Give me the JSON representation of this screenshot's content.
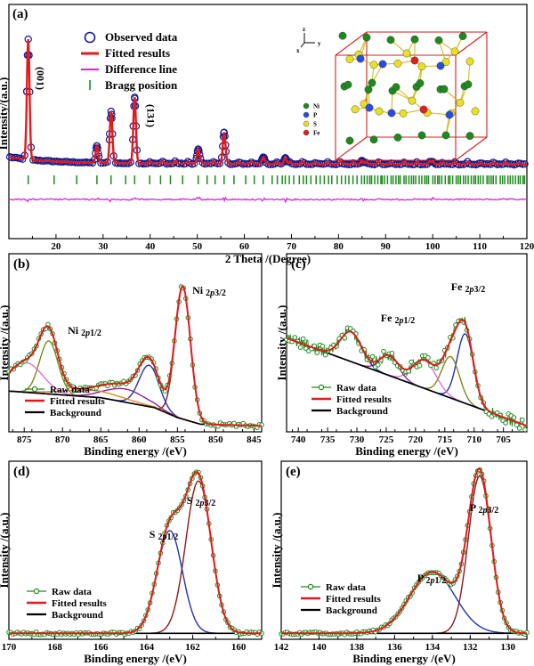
{
  "chart_data": [
    {
      "type": "line",
      "panel": "(a)",
      "xlabel": "2 Theta /(Degree)",
      "ylabel": "Intensity/(a.u.)",
      "xlim": [
        10,
        120
      ],
      "xticks": [
        20,
        30,
        40,
        50,
        60,
        70,
        80,
        90,
        100,
        110,
        120
      ],
      "y_ticklabels_shown": false,
      "legend": {
        "placement": "top-left",
        "entries": [
          "Observed data",
          "Fitted results",
          "Difference line",
          "Bragg position"
        ]
      },
      "annotations": [
        {
          "text": "(001)",
          "x": 14.1
        },
        {
          "text": "(131)",
          "x": 36.7
        }
      ],
      "peaks": [
        {
          "x": 14.1,
          "height": 1.0
        },
        {
          "x": 28.7,
          "height": 0.14
        },
        {
          "x": 31.7,
          "height": 0.43
        },
        {
          "x": 36.7,
          "height": 0.55
        },
        {
          "x": 50.2,
          "height": 0.12
        },
        {
          "x": 55.7,
          "height": 0.26
        },
        {
          "x": 64.0,
          "height": 0.05
        },
        {
          "x": 68.7,
          "height": 0.05
        },
        {
          "x": 85.0,
          "height": 0.03
        },
        {
          "x": 100.0,
          "height": 0.02
        }
      ],
      "series": [
        {
          "name": "Observed data",
          "color": "#1a1a8c",
          "marker": "open-circle"
        },
        {
          "name": "Fitted results",
          "color": "#e01b1b"
        },
        {
          "name": "Difference line",
          "color": "#e020e0"
        },
        {
          "name": "Bragg position",
          "color": "#1e8a1e",
          "marker": "vertical-bar"
        }
      ],
      "crystal_structure": {
        "axes": [
          "z",
          "y",
          "x"
        ],
        "legend": [
          {
            "label": "Ni",
            "color": "#1e8a1e"
          },
          {
            "label": "P",
            "color": "#2a4de0"
          },
          {
            "label": "S",
            "color": "#e8e020"
          },
          {
            "label": "Fe",
            "color": "#e02020"
          }
        ]
      }
    },
    {
      "type": "line",
      "panel": "(b)",
      "xlabel": "Binding energy /(eV)",
      "ylabel": "Intensity /(a.u.)",
      "xlim": [
        877,
        844
      ],
      "xticks": [
        875,
        870,
        865,
        860,
        855,
        850,
        845
      ],
      "reversed_x": true,
      "legend": {
        "placement": "bottom-left",
        "entries": [
          "Raw data",
          "Fitted results",
          "Background"
        ]
      },
      "annotations": [
        {
          "text": "Ni 2p1/2",
          "x": 872.3
        },
        {
          "text": "Ni 2p3/2",
          "x": 854.3
        }
      ],
      "background": [
        [
          877,
          0.23
        ],
        [
          865,
          0.19
        ],
        [
          858,
          0.13
        ],
        [
          855,
          0.07
        ],
        [
          852,
          0.03
        ],
        [
          844,
          0.02
        ]
      ],
      "components": [
        {
          "center": 854.3,
          "height": 0.8,
          "width": 1.0,
          "color": "#8b1a1a"
        },
        {
          "center": 858.7,
          "height": 0.25,
          "width": 1.3,
          "color": "#2233aa"
        },
        {
          "center": 861.8,
          "height": 0.08,
          "width": 2.6,
          "color": "#8a2090"
        },
        {
          "center": 871.8,
          "height": 0.32,
          "width": 1.2,
          "color": "#7a8a1a"
        },
        {
          "center": 874.8,
          "height": 0.18,
          "width": 2.2,
          "color": "#e070d0"
        },
        {
          "center": 866.0,
          "height": 0.04,
          "width": 4.0,
          "color": "#e08a20"
        }
      ],
      "series": [
        {
          "name": "Raw data",
          "color": "#1e8a1e",
          "marker": "open-circle"
        },
        {
          "name": "Fitted results",
          "color": "#e01b1b"
        },
        {
          "name": "Background",
          "color": "#000000"
        }
      ]
    },
    {
      "type": "line",
      "panel": "(c)",
      "xlabel": "Binding energy /(eV)",
      "ylabel": "Intensity /(a.u.)",
      "xlim": [
        742,
        701
      ],
      "xticks": [
        740,
        735,
        730,
        725,
        720,
        715,
        710,
        705
      ],
      "reversed_x": true,
      "legend": {
        "placement": "bottom-left",
        "entries": [
          "Raw data",
          "Fitted results",
          "Background"
        ]
      },
      "annotations": [
        {
          "text": "Fe 2p1/2",
          "x": 724.5
        },
        {
          "text": "Fe 2p3/2",
          "x": 712.5
        }
      ],
      "background": [
        [
          742,
          0.55
        ],
        [
          701,
          0.02
        ]
      ],
      "components": [
        {
          "center": 711.5,
          "height": 0.42,
          "width": 1.4,
          "color": "#2233aa"
        },
        {
          "center": 714.0,
          "height": 0.25,
          "width": 1.5,
          "color": "#7a8a1a"
        },
        {
          "center": 718.5,
          "height": 0.17,
          "width": 2.0,
          "color": "#e070d0"
        },
        {
          "center": 724.5,
          "height": 0.12,
          "width": 1.6,
          "color": "#8a2090"
        },
        {
          "center": 731.0,
          "height": 0.18,
          "width": 1.8,
          "color": "#2233aa"
        }
      ],
      "series": [
        {
          "name": "Raw data",
          "color": "#1e8a1e",
          "marker": "open-circle"
        },
        {
          "name": "Fitted results",
          "color": "#e01b1b"
        },
        {
          "name": "Background",
          "color": "#000000"
        }
      ]
    },
    {
      "type": "line",
      "panel": "(d)",
      "xlabel": "Binding energy /(eV)",
      "ylabel": "Intensity /(a.u.)",
      "xlim": [
        170,
        159
      ],
      "xticks": [
        170,
        168,
        166,
        164,
        162,
        160
      ],
      "reversed_x": true,
      "legend": {
        "placement": "bottom-left",
        "entries": [
          "Raw data",
          "Fitted results",
          "Background"
        ]
      },
      "annotations": [
        {
          "text": "S 2p1/2",
          "x": 163.0
        },
        {
          "text": "S 2p3/2",
          "x": 161.8
        }
      ],
      "background": [
        [
          170,
          0.02
        ],
        [
          159,
          0.02
        ]
      ],
      "components": [
        {
          "center": 161.75,
          "height": 0.92,
          "width": 0.55,
          "color": "#8b1a1a"
        },
        {
          "center": 163.0,
          "height": 0.62,
          "width": 0.55,
          "color": "#2233aa"
        }
      ],
      "series": [
        {
          "name": "Raw data",
          "color": "#1e8a1e",
          "marker": "open-circle"
        },
        {
          "name": "Fitted results",
          "color": "#e01b1b"
        },
        {
          "name": "Background",
          "color": "#000000"
        }
      ]
    },
    {
      "type": "line",
      "panel": "(e)",
      "xlabel": "Binding energy /(eV)",
      "ylabel": "Intensity /(a.u.)",
      "xlim": [
        142,
        129
      ],
      "xticks": [
        142,
        140,
        138,
        136,
        134,
        132,
        130
      ],
      "reversed_x": true,
      "legend": {
        "placement": "bottom-left",
        "entries": [
          "Raw data",
          "Fitted results",
          "Background"
        ]
      },
      "annotations": [
        {
          "text": "P 2p1/2",
          "x": 134.0
        },
        {
          "text": "P 2p3/2",
          "x": 131.5
        }
      ],
      "background": [
        [
          142,
          0.02
        ],
        [
          129,
          0.02
        ]
      ],
      "components": [
        {
          "center": 131.5,
          "height": 0.95,
          "width": 0.6,
          "color": "#8b1a1a"
        },
        {
          "center": 134.0,
          "height": 0.37,
          "width": 1.2,
          "color": "#2233aa"
        }
      ],
      "series": [
        {
          "name": "Raw data",
          "color": "#1e8a1e",
          "marker": "open-circle"
        },
        {
          "name": "Fitted results",
          "color": "#e01b1b"
        },
        {
          "name": "Background",
          "color": "#000000"
        }
      ]
    }
  ]
}
